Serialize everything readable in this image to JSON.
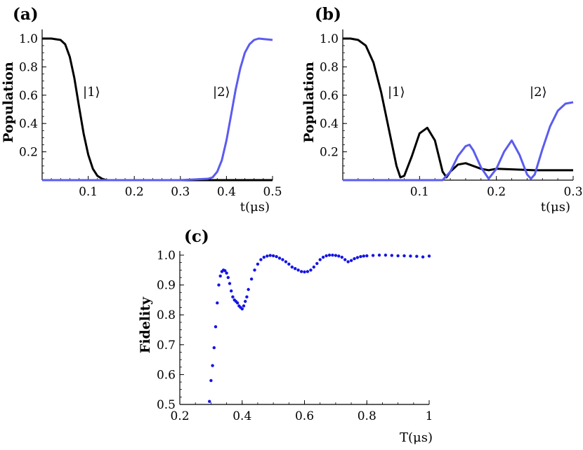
{
  "chart_data": [
    {
      "panel": "(a)",
      "type": "line",
      "ylabel": "Population",
      "xlabel": "t(μs)",
      "xlim": [
        0,
        0.5
      ],
      "ylim": [
        0,
        1.05
      ],
      "xticks": [
        "0.1",
        "0.2",
        "0.3",
        "0.4",
        "0.5"
      ],
      "yticks": [
        "0.2",
        "0.4",
        "0.6",
        "0.8",
        "1.0"
      ],
      "annotations": [
        "|1⟩",
        "|2⟩"
      ],
      "series": [
        {
          "color": "#000000",
          "x": [
            0,
            0.02,
            0.04,
            0.05,
            0.06,
            0.07,
            0.08,
            0.09,
            0.1,
            0.11,
            0.12,
            0.13,
            0.14,
            0.2,
            0.3,
            0.4,
            0.5
          ],
          "values": [
            1.0,
            1.0,
            0.99,
            0.96,
            0.87,
            0.72,
            0.52,
            0.33,
            0.18,
            0.08,
            0.03,
            0.01,
            0.0,
            0.0,
            0.0,
            0.0,
            0.0
          ]
        },
        {
          "color": "#5b5bf0",
          "x": [
            0,
            0.1,
            0.2,
            0.3,
            0.36,
            0.37,
            0.38,
            0.39,
            0.4,
            0.41,
            0.42,
            0.43,
            0.44,
            0.45,
            0.46,
            0.47,
            0.5
          ],
          "values": [
            0.0,
            0.0,
            0.0,
            0.0,
            0.01,
            0.02,
            0.06,
            0.14,
            0.28,
            0.46,
            0.64,
            0.79,
            0.9,
            0.96,
            0.99,
            1.0,
            0.99
          ]
        }
      ]
    },
    {
      "panel": "(b)",
      "type": "line",
      "ylabel": "Population",
      "xlabel": "t(μs)",
      "xlim": [
        0,
        0.3
      ],
      "ylim": [
        0,
        1.05
      ],
      "xticks": [
        "0.1",
        "0.2",
        "0.3"
      ],
      "yticks": [
        "0.2",
        "0.4",
        "0.6",
        "0.8",
        "1.0"
      ],
      "annotations": [
        "|1⟩",
        "|2⟩"
      ],
      "series": [
        {
          "color": "#000000",
          "x": [
            0,
            0.01,
            0.02,
            0.03,
            0.04,
            0.05,
            0.06,
            0.07,
            0.075,
            0.08,
            0.09,
            0.1,
            0.11,
            0.12,
            0.13,
            0.135,
            0.14,
            0.15,
            0.16,
            0.17,
            0.18,
            0.19,
            0.2,
            0.25,
            0.3
          ],
          "values": [
            1.0,
            1.0,
            0.99,
            0.95,
            0.83,
            0.62,
            0.36,
            0.1,
            0.02,
            0.03,
            0.17,
            0.33,
            0.37,
            0.28,
            0.06,
            0.02,
            0.06,
            0.11,
            0.12,
            0.1,
            0.08,
            0.07,
            0.08,
            0.07,
            0.07
          ]
        },
        {
          "color": "#5b5bf0",
          "x": [
            0,
            0.13,
            0.14,
            0.15,
            0.16,
            0.165,
            0.17,
            0.18,
            0.19,
            0.2,
            0.21,
            0.22,
            0.23,
            0.24,
            0.245,
            0.25,
            0.26,
            0.27,
            0.28,
            0.29,
            0.3
          ],
          "values": [
            0.0,
            0.0,
            0.06,
            0.17,
            0.24,
            0.25,
            0.21,
            0.09,
            0.01,
            0.08,
            0.2,
            0.28,
            0.18,
            0.04,
            0.01,
            0.04,
            0.22,
            0.38,
            0.49,
            0.54,
            0.55
          ]
        }
      ]
    },
    {
      "panel": "(c)",
      "type": "scatter",
      "ylabel": "Fidelity",
      "xlabel": "T(μs)",
      "xlim": [
        0.2,
        1.0
      ],
      "ylim": [
        0.5,
        1.0
      ],
      "xticks": [
        "0.2",
        "0.4",
        "0.6",
        "0.8",
        "1"
      ],
      "yticks": [
        "0.5",
        "0.6",
        "0.7",
        "0.8",
        "0.9",
        "1.0"
      ],
      "series": [
        {
          "color": "#1414e6",
          "x": [
            0.295,
            0.3,
            0.305,
            0.31,
            0.315,
            0.32,
            0.325,
            0.33,
            0.335,
            0.34,
            0.345,
            0.35,
            0.355,
            0.36,
            0.365,
            0.37,
            0.375,
            0.38,
            0.385,
            0.39,
            0.395,
            0.4,
            0.405,
            0.41,
            0.415,
            0.42,
            0.43,
            0.44,
            0.45,
            0.46,
            0.47,
            0.48,
            0.49,
            0.5,
            0.51,
            0.52,
            0.53,
            0.54,
            0.55,
            0.56,
            0.57,
            0.58,
            0.59,
            0.6,
            0.61,
            0.62,
            0.63,
            0.64,
            0.65,
            0.66,
            0.67,
            0.68,
            0.69,
            0.7,
            0.71,
            0.72,
            0.73,
            0.74,
            0.75,
            0.76,
            0.77,
            0.78,
            0.79,
            0.8,
            0.82,
            0.84,
            0.86,
            0.88,
            0.9,
            0.92,
            0.94,
            0.96,
            0.98,
            1.0
          ],
          "values": [
            0.51,
            0.58,
            0.63,
            0.69,
            0.76,
            0.84,
            0.9,
            0.93,
            0.945,
            0.95,
            0.948,
            0.94,
            0.925,
            0.905,
            0.88,
            0.86,
            0.85,
            0.845,
            0.84,
            0.83,
            0.825,
            0.82,
            0.83,
            0.845,
            0.86,
            0.885,
            0.92,
            0.95,
            0.97,
            0.985,
            0.993,
            0.997,
            0.999,
            0.998,
            0.995,
            0.99,
            0.985,
            0.978,
            0.97,
            0.96,
            0.955,
            0.95,
            0.945,
            0.944,
            0.945,
            0.95,
            0.96,
            0.972,
            0.985,
            0.993,
            0.998,
            1.0,
            1.0,
            0.999,
            0.997,
            0.993,
            0.985,
            0.978,
            0.982,
            0.988,
            0.992,
            0.995,
            0.997,
            0.998,
            0.999,
            1.0,
            1.0,
            0.999,
            0.998,
            0.998,
            0.997,
            0.996,
            0.994,
            0.997
          ]
        }
      ]
    }
  ]
}
